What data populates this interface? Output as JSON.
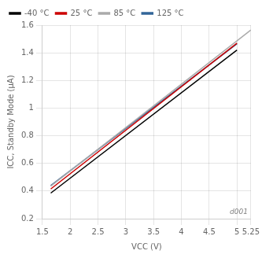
{
  "chart_data": {
    "type": "line",
    "xlabel": "VCC (V)",
    "ylabel": "ICC, Standby Mode (μA)",
    "xlim": [
      1.5,
      5.25
    ],
    "ylim": [
      0.2,
      1.6
    ],
    "xticks": [
      1.5,
      2,
      2.5,
      3,
      3.5,
      4,
      4.5,
      5,
      5.25
    ],
    "yticks": [
      0.2,
      0.4,
      0.6,
      0.8,
      1,
      1.2,
      1.4,
      1.6
    ],
    "series": [
      {
        "name": "-40 °C",
        "color": "#000000",
        "x": [
          1.65,
          5.0
        ],
        "values": [
          0.385,
          1.42
        ]
      },
      {
        "name": "25 °C",
        "color": "#cc0000",
        "x": [
          1.65,
          5.0
        ],
        "values": [
          0.415,
          1.47
        ]
      },
      {
        "name": "85 °C",
        "color": "#aaaaaa",
        "x": [
          1.65,
          5.25
        ],
        "values": [
          0.435,
          1.565
        ]
      },
      {
        "name": "125 °C",
        "color": "#336699",
        "x": [
          1.65,
          5.0
        ],
        "values": [
          0.44,
          1.465
        ]
      }
    ],
    "grid": true,
    "legend": "upper left",
    "annotations": [
      {
        "text": "d001"
      }
    ]
  }
}
